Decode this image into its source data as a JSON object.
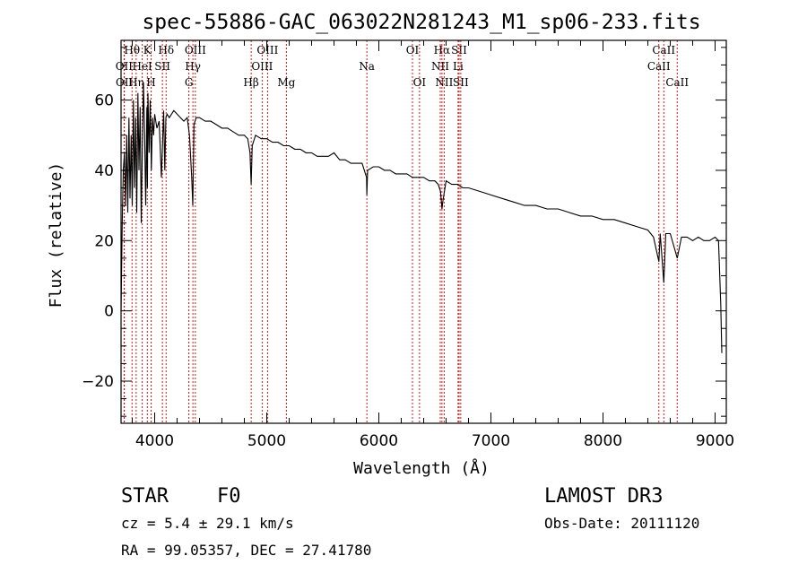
{
  "chart_data": {
    "type": "line",
    "title": "spec-55886-GAC_063022N281243_M1_sp06-233.fits",
    "xlabel": "Wavelength (Å)",
    "ylabel": "Flux (relative)",
    "xlim": [
      3700,
      9100
    ],
    "ylim": [
      -32,
      77
    ],
    "x_ticks": [
      4000,
      5000,
      6000,
      7000,
      8000,
      9000
    ],
    "x_tick_labels": [
      "4000",
      "5000",
      "6000",
      "7000",
      "8000",
      "9000"
    ],
    "y_ticks": [
      -20,
      0,
      20,
      40,
      60
    ],
    "y_tick_labels": [
      "−20",
      "0",
      "20",
      "40",
      "60"
    ],
    "series": [
      {
        "name": "flux",
        "x": [
          3700,
          3710,
          3720,
          3730,
          3740,
          3750,
          3760,
          3770,
          3780,
          3790,
          3800,
          3810,
          3820,
          3830,
          3840,
          3850,
          3860,
          3870,
          3880,
          3890,
          3900,
          3910,
          3920,
          3930,
          3935,
          3940,
          3950,
          3960,
          3970,
          3980,
          3990,
          4000,
          4020,
          4040,
          4060,
          4080,
          4090,
          4100,
          4110,
          4130,
          4150,
          4170,
          4200,
          4230,
          4260,
          4290,
          4310,
          4330,
          4340,
          4345,
          4350,
          4370,
          4400,
          4450,
          4500,
          4550,
          4600,
          4650,
          4700,
          4750,
          4800,
          4830,
          4850,
          4861,
          4870,
          4900,
          4950,
          5000,
          5050,
          5100,
          5150,
          5200,
          5250,
          5300,
          5350,
          5400,
          5450,
          5500,
          5550,
          5600,
          5650,
          5700,
          5750,
          5800,
          5850,
          5890,
          5893,
          5900,
          5950,
          6000,
          6050,
          6100,
          6150,
          6200,
          6250,
          6300,
          6350,
          6400,
          6450,
          6500,
          6530,
          6550,
          6563,
          6570,
          6600,
          6650,
          6700,
          6750,
          6800,
          6900,
          7000,
          7100,
          7200,
          7300,
          7400,
          7500,
          7600,
          7700,
          7800,
          7900,
          8000,
          8100,
          8200,
          8300,
          8400,
          8450,
          8498,
          8510,
          8542,
          8560,
          8600,
          8662,
          8700,
          8750,
          8800,
          8850,
          8900,
          8950,
          9000,
          9030,
          9050,
          9060
        ],
        "values": [
          0,
          25,
          40,
          45,
          30,
          50,
          28,
          55,
          32,
          50,
          30,
          60,
          35,
          55,
          28,
          62,
          40,
          58,
          25,
          48,
          65,
          50,
          30,
          58,
          35,
          62,
          45,
          60,
          40,
          55,
          50,
          56,
          52,
          54,
          38,
          57,
          40,
          55,
          56,
          55,
          56,
          57,
          56,
          55,
          54,
          55,
          50,
          38,
          30,
          40,
          53,
          55,
          55,
          54,
          54,
          53,
          52,
          52,
          51,
          50,
          50,
          49,
          45,
          36,
          47,
          50,
          49,
          49,
          48,
          48,
          47,
          47,
          46,
          46,
          45,
          45,
          44,
          44,
          44,
          45,
          43,
          43,
          42,
          42,
          42,
          38,
          33,
          40,
          41,
          41,
          40,
          40,
          39,
          39,
          39,
          38,
          38,
          38,
          37,
          37,
          36,
          34,
          29,
          31,
          37,
          36,
          36,
          35,
          35,
          34,
          33,
          32,
          31,
          30,
          30,
          29,
          29,
          28,
          27,
          27,
          26,
          26,
          25,
          24,
          23,
          21,
          14,
          22,
          8,
          22,
          22,
          15,
          21,
          21,
          20,
          21,
          20,
          20,
          21,
          20,
          2,
          -12
        ]
      }
    ],
    "line_marks": [
      {
        "label": "Hθ",
        "x": 3798,
        "row": 0
      },
      {
        "label": "OII",
        "x": 3727,
        "row": 1
      },
      {
        "label": "OII",
        "x": 3729,
        "row": 2
      },
      {
        "label": "K",
        "x": 3934,
        "row": 0
      },
      {
        "label": "HeI",
        "x": 3889,
        "row": 1
      },
      {
        "label": "Hη",
        "x": 3835,
        "row": 2
      },
      {
        "label": "SII",
        "x": 4069,
        "row": 1
      },
      {
        "label": "H",
        "x": 3968,
        "row": 2
      },
      {
        "label": "Hδ",
        "x": 4102,
        "row": 0
      },
      {
        "label": "OIII",
        "x": 4363,
        "row": 0
      },
      {
        "label": "Hγ",
        "x": 4341,
        "row": 1
      },
      {
        "label": "G",
        "x": 4305,
        "row": 2
      },
      {
        "label": "OIII",
        "x": 5007,
        "row": 0
      },
      {
        "label": "OIII",
        "x": 4959,
        "row": 1
      },
      {
        "label": "Hβ",
        "x": 4861,
        "row": 2
      },
      {
        "label": "Mg",
        "x": 5175,
        "row": 2
      },
      {
        "label": "Na",
        "x": 5893,
        "row": 1
      },
      {
        "label": "OI",
        "x": 6300,
        "row": 0
      },
      {
        "label": "OI",
        "x": 6363,
        "row": 2
      },
      {
        "label": "Hα",
        "x": 6563,
        "row": 0
      },
      {
        "label": "SII",
        "x": 6716,
        "row": 0
      },
      {
        "label": "NII",
        "x": 6548,
        "row": 1
      },
      {
        "label": "Li",
        "x": 6707,
        "row": 1
      },
      {
        "label": "NII",
        "x": 6583,
        "row": 2
      },
      {
        "label": "SII",
        "x": 6731,
        "row": 2
      },
      {
        "label": "CaII",
        "x": 8542,
        "row": 0
      },
      {
        "label": "CaII",
        "x": 8498,
        "row": 1
      },
      {
        "label": "CaII",
        "x": 8662,
        "row": 2
      }
    ]
  },
  "info": {
    "class": "STAR",
    "subclass": "F0",
    "survey": "LAMOST DR3",
    "redshift": "cz = 5.4 ± 29.1 km/s",
    "obs_date": "Obs-Date: 20111120",
    "coords": "RA =  99.05357, DEC =  27.41780"
  },
  "colors": {
    "line_mark": "#cc0000",
    "spectrum": "#000000",
    "axes": "#000000"
  }
}
